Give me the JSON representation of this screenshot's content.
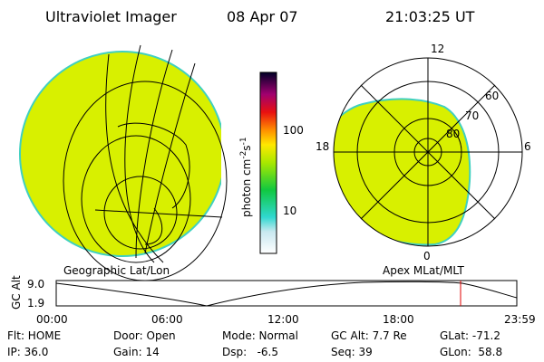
{
  "header": {
    "title": "Ultraviolet Imager",
    "date": "08 Apr 07",
    "time": "21:03:25 UT"
  },
  "colorbar": {
    "label": [
      "photon cm",
      "-2",
      "s",
      "-1"
    ],
    "ticks": [
      "100",
      "10"
    ]
  },
  "polar": {
    "mlt_labels": [
      "12",
      "18",
      "6",
      "0"
    ],
    "mlat_labels": [
      "60",
      "70",
      "80"
    ]
  },
  "left_caption": "Geographic Lat/Lon",
  "right_caption": "Apex MLat/MLT",
  "altitude": {
    "label": "GC Alt",
    "yticks": [
      "9.0",
      "1.9"
    ],
    "xticks": [
      "00:00",
      "06:00",
      "12:00",
      "18:00",
      "23:59"
    ]
  },
  "info": {
    "rows": [
      [
        "Flt: HOME",
        "Door: Open",
        "Mode: Normal",
        "GC Alt: 7.7 Re",
        "GLat: -71.2"
      ],
      [
        "IP: 36.0",
        "Gain: 14",
        "Dsp:   -6.5",
        "Seq: 39",
        "GLon:  58.8"
      ]
    ]
  }
}
